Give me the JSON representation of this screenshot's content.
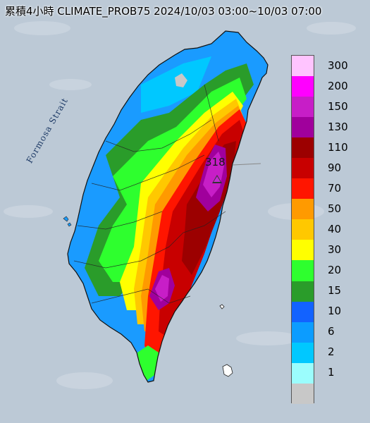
{
  "title": "累積4小時 CLIMATE_PROB75 2024/10/03 03:00~10/03 07:00",
  "strait_label": "Formosa Strait",
  "max_value": "318",
  "legend": {
    "levels": [
      {
        "label": "300",
        "color": "#ffc4ff"
      },
      {
        "label": "200",
        "color": "#ff00ff"
      },
      {
        "label": "150",
        "color": "#c71ec7"
      },
      {
        "label": "130",
        "color": "#a0009c"
      },
      {
        "label": "110",
        "color": "#9c0000"
      },
      {
        "label": "90",
        "color": "#c80000"
      },
      {
        "label": "70",
        "color": "#ff1500"
      },
      {
        "label": "50",
        "color": "#ff9a00"
      },
      {
        "label": "40",
        "color": "#ffc800"
      },
      {
        "label": "30",
        "color": "#ffff00"
      },
      {
        "label": "20",
        "color": "#2eff2e"
      },
      {
        "label": "15",
        "color": "#2a9c2a"
      },
      {
        "label": "10",
        "color": "#1262ff"
      },
      {
        "label": "6",
        "color": "#0c9cff"
      },
      {
        "label": "2",
        "color": "#00c8ff"
      },
      {
        "label": "1",
        "color": "#9bfdfd"
      },
      {
        "label": "",
        "color": "#c8c8c8"
      }
    ]
  },
  "colors": {
    "ocean": "#bcc9d6",
    "land_low": "#1a9bff",
    "land_mid": "#2eff2e",
    "land_high": "#ff1500",
    "peak": "#c71ec7"
  }
}
